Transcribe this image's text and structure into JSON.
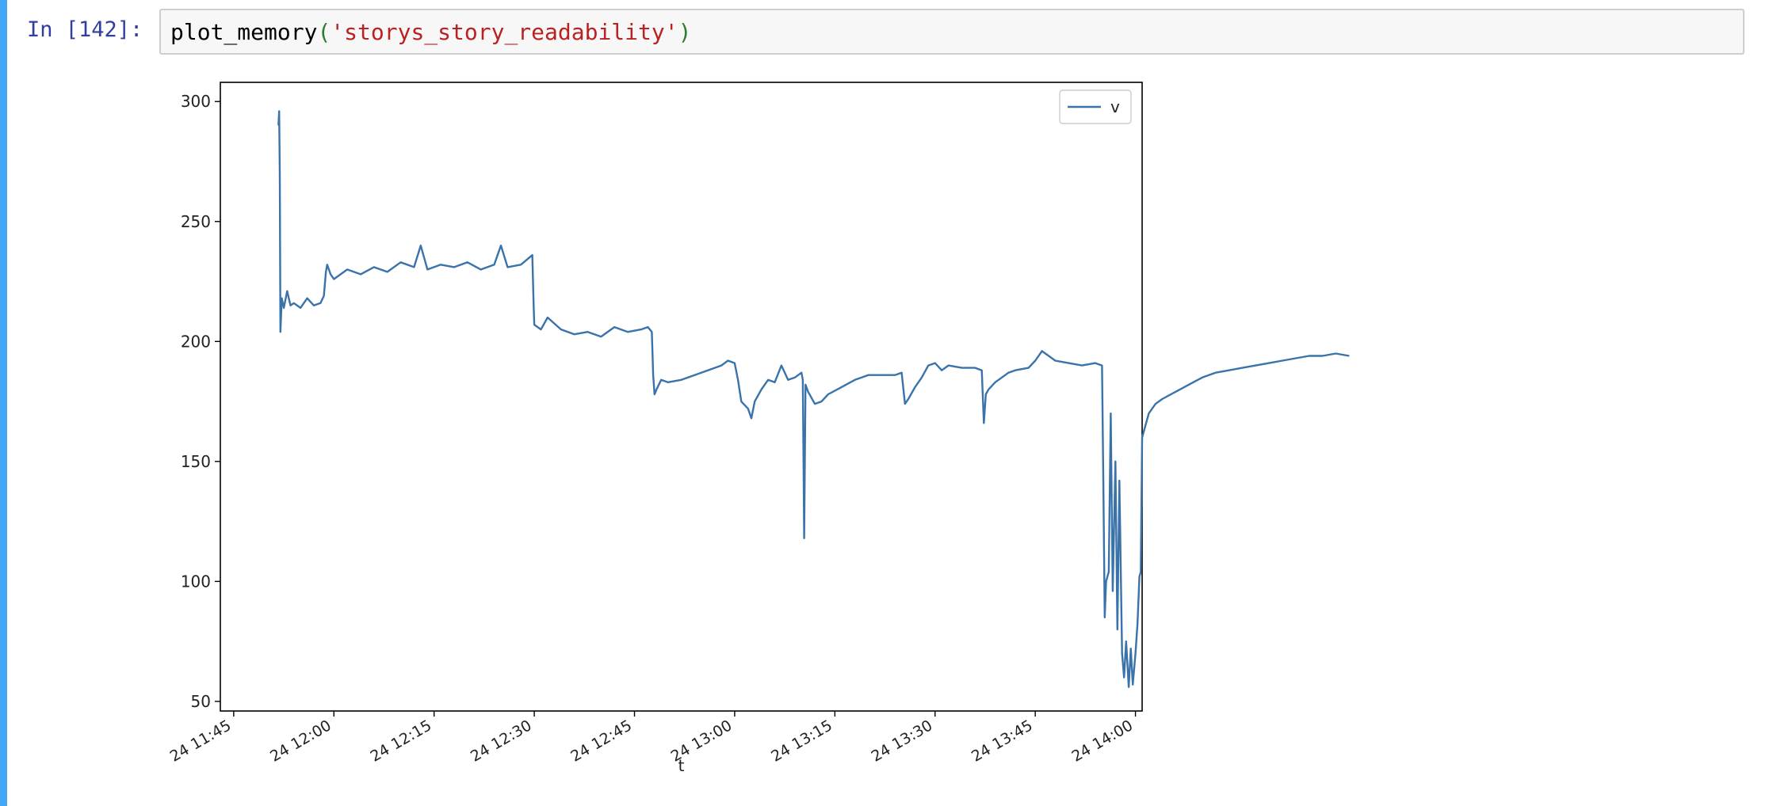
{
  "cell": {
    "prompt": "In [142]:",
    "code_fn": "plot_memory",
    "code_open": "(",
    "code_arg": "'storys_story_readability'",
    "code_close": ")"
  },
  "colors": {
    "line": "#3a73aa",
    "prompt": "#303f9f",
    "string": "#ba2121",
    "paren": "#2e7d32",
    "cell_bar": "#42a5f5"
  },
  "chart_data": {
    "type": "line",
    "xlabel": "t",
    "ylabel": "",
    "x_range": [
      "2000-01-24 11:43",
      "2000-01-24 14:01"
    ],
    "ylim": [
      46,
      308
    ],
    "yticks": [
      50,
      100,
      150,
      200,
      250,
      300
    ],
    "xticks": [
      {
        "t": "11:45",
        "label": "24 11:45"
      },
      {
        "t": "12:00",
        "label": "24 12:00"
      },
      {
        "t": "12:15",
        "label": "24 12:15"
      },
      {
        "t": "12:30",
        "label": "24 12:30"
      },
      {
        "t": "12:45",
        "label": "24 12:45"
      },
      {
        "t": "13:00",
        "label": "24 13:00"
      },
      {
        "t": "13:15",
        "label": "24 13:15"
      },
      {
        "t": "13:30",
        "label": "24 13:30"
      },
      {
        "t": "13:45",
        "label": "24 13:45"
      },
      {
        "t": "14:00",
        "label": "24 14:00"
      }
    ],
    "legend": {
      "position": "top-right",
      "entries": [
        "v"
      ]
    },
    "grid": false,
    "series": [
      {
        "name": "v",
        "points": [
          [
            "11:51.7",
            290
          ],
          [
            "11:51.8",
            296
          ],
          [
            "11:51.9",
            270
          ],
          [
            "11:52.0",
            204
          ],
          [
            "11:52.2",
            218
          ],
          [
            "11:52.5",
            214
          ],
          [
            "11:53.0",
            221
          ],
          [
            "11:53.5",
            215
          ],
          [
            "11:54.0",
            216
          ],
          [
            "11:55.0",
            214
          ],
          [
            "11:56.0",
            218
          ],
          [
            "11:57.0",
            215
          ],
          [
            "11:58.0",
            216
          ],
          [
            "11:58.5",
            219
          ],
          [
            "11:58.8",
            229
          ],
          [
            "11:59.0",
            232
          ],
          [
            "11:59.5",
            228
          ],
          [
            "12:00.0",
            226
          ],
          [
            "12:02.0",
            230
          ],
          [
            "12:04.0",
            228
          ],
          [
            "12:06.0",
            231
          ],
          [
            "12:08.0",
            229
          ],
          [
            "12:10.0",
            233
          ],
          [
            "12:12.0",
            231
          ],
          [
            "12:13.0",
            240
          ],
          [
            "12:14.0",
            230
          ],
          [
            "12:16.0",
            232
          ],
          [
            "12:18.0",
            231
          ],
          [
            "12:20.0",
            233
          ],
          [
            "12:22.0",
            230
          ],
          [
            "12:24.0",
            232
          ],
          [
            "12:25.0",
            240
          ],
          [
            "12:26.0",
            231
          ],
          [
            "12:28.0",
            232
          ],
          [
            "12:29.7",
            236
          ],
          [
            "12:29.9",
            215
          ],
          [
            "12:30.0",
            207
          ],
          [
            "12:31.0",
            205
          ],
          [
            "12:32.0",
            210
          ],
          [
            "12:34.0",
            205
          ],
          [
            "12:36.0",
            203
          ],
          [
            "12:38.0",
            204
          ],
          [
            "12:40.0",
            202
          ],
          [
            "12:42.0",
            206
          ],
          [
            "12:44.0",
            204
          ],
          [
            "12:46.0",
            205
          ],
          [
            "12:47.0",
            206
          ],
          [
            "12:47.6",
            204
          ],
          [
            "12:47.8",
            186
          ],
          [
            "12:48.0",
            178
          ],
          [
            "12:48.3",
            180
          ],
          [
            "12:49.0",
            184
          ],
          [
            "12:50.0",
            183
          ],
          [
            "12:52.0",
            184
          ],
          [
            "12:54.0",
            186
          ],
          [
            "12:56.0",
            188
          ],
          [
            "12:58.0",
            190
          ],
          [
            "12:59.0",
            192
          ],
          [
            "13:00.0",
            191
          ],
          [
            "13:00.5",
            184
          ],
          [
            "13:01.0",
            175
          ],
          [
            "13:02.0",
            172
          ],
          [
            "13:02.5",
            168
          ],
          [
            "13:03.0",
            175
          ],
          [
            "13:04.0",
            180
          ],
          [
            "13:05.0",
            184
          ],
          [
            "13:06.0",
            183
          ],
          [
            "13:07.0",
            190
          ],
          [
            "13:08.0",
            184
          ],
          [
            "13:09.0",
            185
          ],
          [
            "13:10.0",
            187
          ],
          [
            "13:10.2",
            184
          ],
          [
            "13:10.4",
            118
          ],
          [
            "13:10.6",
            182
          ],
          [
            "13:11.0",
            179
          ],
          [
            "13:12.0",
            174
          ],
          [
            "13:13.0",
            175
          ],
          [
            "13:14.0",
            178
          ],
          [
            "13:16.0",
            181
          ],
          [
            "13:18.0",
            184
          ],
          [
            "13:20.0",
            186
          ],
          [
            "13:22.0",
            186
          ],
          [
            "13:24.0",
            186
          ],
          [
            "13:25.0",
            187
          ],
          [
            "13:25.5",
            174
          ],
          [
            "13:26.0",
            176
          ],
          [
            "13:27.0",
            181
          ],
          [
            "13:28.0",
            185
          ],
          [
            "13:29.0",
            190
          ],
          [
            "13:30.0",
            191
          ],
          [
            "13:31.0",
            188
          ],
          [
            "13:32.0",
            190
          ],
          [
            "13:34.0",
            189
          ],
          [
            "13:36.0",
            189
          ],
          [
            "13:37.0",
            188
          ],
          [
            "13:37.3",
            166
          ],
          [
            "13:37.6",
            178
          ],
          [
            "13:38.0",
            180
          ],
          [
            "13:39.0",
            183
          ],
          [
            "13:40.0",
            185
          ],
          [
            "13:41.0",
            187
          ],
          [
            "13:42.0",
            188
          ],
          [
            "13:44.0",
            189
          ],
          [
            "13:45.0",
            192
          ],
          [
            "13:46.0",
            196
          ],
          [
            "13:48.0",
            192
          ],
          [
            "13:50.0",
            191
          ],
          [
            "13:52.0",
            190
          ],
          [
            "13:54.0",
            191
          ],
          [
            "13:55.0",
            190
          ],
          [
            "13:55.2",
            140
          ],
          [
            "13:55.4",
            85
          ],
          [
            "13:55.6",
            100
          ],
          [
            "13:56.0",
            104
          ],
          [
            "13:56.3",
            170
          ],
          [
            "13:56.6",
            96
          ],
          [
            "13:57.0",
            150
          ],
          [
            "13:57.3",
            80
          ],
          [
            "13:57.6",
            142
          ],
          [
            "13:58.0",
            70
          ],
          [
            "13:58.3",
            60
          ],
          [
            "13:58.6",
            75
          ],
          [
            "13:59.0",
            56
          ],
          [
            "13:59.3",
            72
          ],
          [
            "13:59.6",
            57
          ],
          [
            "14:00.0",
            70
          ],
          [
            "14:00.3",
            82
          ],
          [
            "14:00.6",
            102
          ],
          [
            "14:00.8",
            104
          ],
          [
            "14:01.0",
            160
          ],
          [
            "14:02.0",
            170
          ],
          [
            "14:03.0",
            174
          ],
          [
            "14:04.0",
            176
          ],
          [
            "14:06.0",
            179
          ],
          [
            "14:08.0",
            182
          ],
          [
            "14:10.0",
            185
          ],
          [
            "14:12.0",
            187
          ],
          [
            "14:14.0",
            188
          ],
          [
            "14:16.0",
            189
          ],
          [
            "14:18.0",
            190
          ],
          [
            "14:20.0",
            191
          ],
          [
            "14:22.0",
            192
          ],
          [
            "14:24.0",
            193
          ],
          [
            "14:26.0",
            194
          ],
          [
            "14:28.0",
            194
          ],
          [
            "14:30.0",
            195
          ],
          [
            "14:32.0",
            194
          ]
        ]
      }
    ]
  }
}
